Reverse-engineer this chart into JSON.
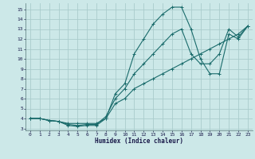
{
  "xlabel": "Humidex (Indice chaleur)",
  "bg_color": "#cce8e8",
  "grid_color": "#aacccc",
  "line_color": "#1a6b6b",
  "xlim": [
    -0.5,
    23.5
  ],
  "ylim": [
    2.8,
    15.6
  ],
  "yticks": [
    3,
    4,
    5,
    6,
    7,
    8,
    9,
    10,
    11,
    12,
    13,
    14,
    15
  ],
  "xticks": [
    0,
    1,
    2,
    3,
    4,
    5,
    6,
    7,
    8,
    9,
    10,
    11,
    12,
    13,
    14,
    15,
    16,
    17,
    18,
    19,
    20,
    21,
    22,
    23
  ],
  "line1_x": [
    0,
    1,
    2,
    3,
    4,
    5,
    6,
    7,
    8,
    9,
    10,
    11,
    12,
    13,
    14,
    15,
    16,
    17,
    18,
    19,
    20,
    21,
    22,
    23
  ],
  "line1_y": [
    4.0,
    4.0,
    3.8,
    3.7,
    3.3,
    3.2,
    3.3,
    3.3,
    4.0,
    6.5,
    7.5,
    10.5,
    12.0,
    13.5,
    14.5,
    15.2,
    15.2,
    13.0,
    10.0,
    8.5,
    8.5,
    12.5,
    12.0,
    13.3
  ],
  "line2_x": [
    0,
    1,
    2,
    3,
    4,
    5,
    6,
    7,
    8,
    9,
    10,
    11,
    12,
    13,
    14,
    15,
    16,
    17,
    18,
    19,
    20,
    21,
    22,
    23
  ],
  "line2_y": [
    4.0,
    4.0,
    3.8,
    3.7,
    3.5,
    3.5,
    3.5,
    3.5,
    4.0,
    5.5,
    6.0,
    7.0,
    7.5,
    8.0,
    8.5,
    9.0,
    9.5,
    10.0,
    10.5,
    11.0,
    11.5,
    12.0,
    12.5,
    13.3
  ],
  "line3_x": [
    0,
    1,
    2,
    3,
    4,
    5,
    6,
    7,
    8,
    9,
    10,
    11,
    12,
    13,
    14,
    15,
    16,
    17,
    18,
    19,
    20,
    21,
    22,
    23
  ],
  "line3_y": [
    4.0,
    4.0,
    3.8,
    3.7,
    3.4,
    3.3,
    3.4,
    3.4,
    4.2,
    6.0,
    7.0,
    8.5,
    9.5,
    10.5,
    11.5,
    12.5,
    13.0,
    10.5,
    9.5,
    9.5,
    10.5,
    13.0,
    12.2,
    13.3
  ]
}
